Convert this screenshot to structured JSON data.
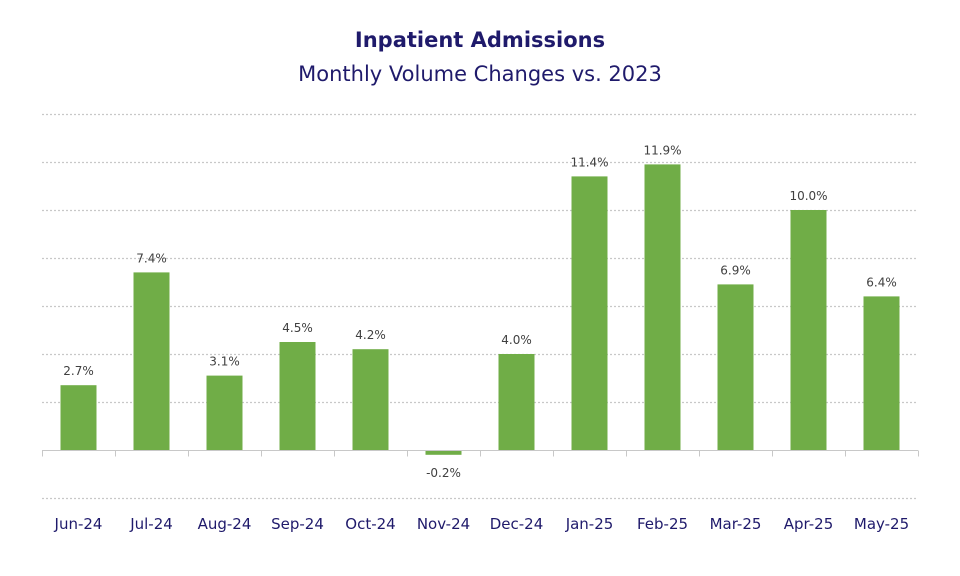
{
  "header": {
    "title": "Inpatient Admissions",
    "subtitle": "Monthly Volume Changes vs. 2023"
  },
  "colors": {
    "bar": "#70ad47",
    "title": "#1f1a6b",
    "grid": "#c8c8c8"
  },
  "chart_data": {
    "type": "bar",
    "title": "Inpatient Admissions",
    "subtitle": "Monthly Volume Changes vs. 2023",
    "categories": [
      "Jun-24",
      "Jul-24",
      "Aug-24",
      "Sep-24",
      "Oct-24",
      "Nov-24",
      "Dec-24",
      "Jan-25",
      "Feb-25",
      "Mar-25",
      "Apr-25",
      "May-25"
    ],
    "values": [
      2.7,
      7.4,
      3.1,
      4.5,
      4.2,
      -0.2,
      4.0,
      11.4,
      11.9,
      6.9,
      10.0,
      6.4
    ],
    "data_labels": [
      "2.7%",
      "7.4%",
      "3.1%",
      "4.5%",
      "4.2%",
      "-0.2%",
      "4.0%",
      "11.4%",
      "11.9%",
      "6.9%",
      "10.0%",
      "6.4%"
    ],
    "xlabel": "",
    "ylabel": "",
    "ylim": [
      -2,
      14
    ],
    "gridline_step": 2,
    "grid": true,
    "y_tick_labels_shown": false,
    "legend": "none"
  }
}
